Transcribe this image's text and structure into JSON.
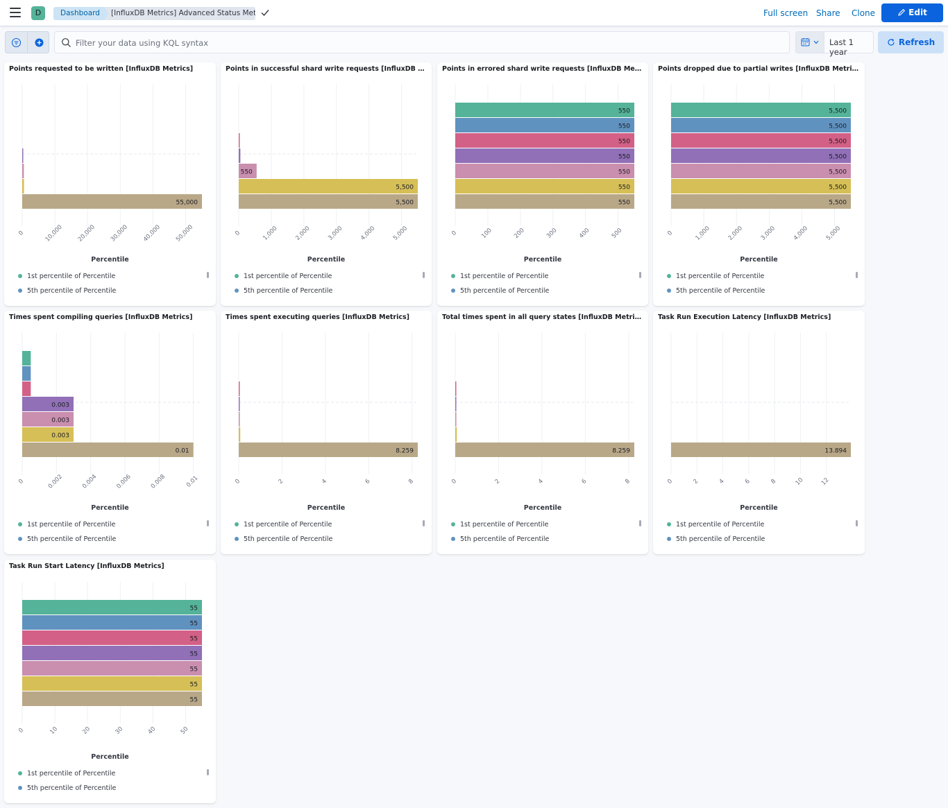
{
  "header": {
    "avatar_letter": "D",
    "breadcrumb_root": "Dashboard",
    "breadcrumb_current": "[InfluxDB Metrics] Advanced Status Metrics",
    "links": [
      "Full screen",
      "Share",
      "Clone"
    ],
    "edit_label": "Edit"
  },
  "query_bar": {
    "placeholder": "Filter your data using KQL syntax",
    "date_range": "Last 1 year",
    "refresh_label": "Refresh"
  },
  "colors": [
    "#54b399",
    "#6092c0",
    "#d36086",
    "#9170b8",
    "#ca8eae",
    "#d6bf57",
    "#b9a888"
  ],
  "axis_title": "Percentile",
  "legend": [
    "1st percentile of Percentile",
    "5th percentile of Percentile"
  ],
  "chart_data": [
    {
      "type": "bar",
      "title": "Points requested to be written [InfluxDB Metrics]",
      "orientation": "horizontal",
      "xlabel": "Percentile",
      "ticks": [
        "0",
        "10,000",
        "20,000",
        "30,000",
        "40,000",
        "50,000"
      ],
      "xlim": [
        0,
        55000
      ],
      "values": [
        0,
        0,
        0,
        50,
        500,
        550,
        55000
      ],
      "labels": [
        "",
        "",
        "",
        "",
        "",
        "",
        "55,000"
      ]
    },
    {
      "type": "bar",
      "title": "Points in successful shard write requests [InfluxDB Metr...",
      "orientation": "horizontal",
      "xlabel": "Percentile",
      "ticks": [
        "0",
        "1,000",
        "2,000",
        "3,000",
        "4,000",
        "5,000"
      ],
      "xlim": [
        0,
        5500
      ],
      "values": [
        0,
        0,
        5,
        50,
        550,
        5500,
        5500
      ],
      "labels": [
        "",
        "",
        "",
        "",
        "550",
        "5,500",
        "5,500"
      ]
    },
    {
      "type": "bar",
      "title": "Points in errored shard write requests [InfluxDB Metrics]",
      "orientation": "horizontal",
      "xlabel": "Percentile",
      "ticks": [
        "0",
        "100",
        "200",
        "300",
        "400",
        "500"
      ],
      "xlim": [
        0,
        550
      ],
      "values": [
        550,
        550,
        550,
        550,
        550,
        550,
        550
      ],
      "labels": [
        "550",
        "550",
        "550",
        "550",
        "550",
        "550",
        "550"
      ]
    },
    {
      "type": "bar",
      "title": "Points dropped due to partial writes [InfluxDB Metrics]",
      "orientation": "horizontal",
      "xlabel": "Percentile",
      "ticks": [
        "0",
        "1,000",
        "2,000",
        "3,000",
        "4,000",
        "5,000"
      ],
      "xlim": [
        0,
        5500
      ],
      "values": [
        5500,
        5500,
        5500,
        5500,
        5500,
        5500,
        5500
      ],
      "labels": [
        "5,500",
        "5,500",
        "5,500",
        "5,500",
        "5,500",
        "5,500",
        "5,500"
      ]
    },
    {
      "type": "bar",
      "title": "Times spent compiling queries [InfluxDB Metrics]",
      "orientation": "horizontal",
      "xlabel": "Percentile",
      "ticks": [
        "0",
        "0.002",
        "0.004",
        "0.006",
        "0.008",
        "0.01"
      ],
      "xlim": [
        0,
        0.0105
      ],
      "values": [
        0.0005,
        0.0005,
        0.0005,
        0.003,
        0.003,
        0.003,
        0.01
      ],
      "labels": [
        "",
        "",
        "",
        "0.003",
        "0.003",
        "0.003",
        "0.01"
      ]
    },
    {
      "type": "bar",
      "title": "Times spent executing queries [InfluxDB Metrics]",
      "orientation": "horizontal",
      "xlabel": "Percentile",
      "ticks": [
        "0",
        "2",
        "4",
        "6",
        "8"
      ],
      "xlim": [
        0,
        8.26
      ],
      "values": [
        0,
        0,
        0.02,
        0.03,
        0.05,
        0.07,
        8.259
      ],
      "labels": [
        "",
        "",
        "",
        "",
        "",
        "",
        "8.259"
      ]
    },
    {
      "type": "bar",
      "title": "Total times spent in all query states [InfluxDB Metrics]",
      "orientation": "horizontal",
      "xlabel": "Percentile",
      "ticks": [
        "0",
        "2",
        "4",
        "6",
        "8"
      ],
      "xlim": [
        0,
        8.26
      ],
      "values": [
        0,
        0,
        0.02,
        0.03,
        0.05,
        0.07,
        8.259
      ],
      "labels": [
        "",
        "",
        "",
        "",
        "",
        "",
        "8.259"
      ]
    },
    {
      "type": "bar",
      "title": "Task Run Execution Latency [InfluxDB Metrics]",
      "orientation": "horizontal",
      "xlabel": "Percentile",
      "ticks": [
        "0",
        "2",
        "4",
        "6",
        "8",
        "10",
        "12"
      ],
      "xlim": [
        0,
        13.894
      ],
      "values": [
        0,
        0,
        0,
        0,
        0,
        0,
        13.894
      ],
      "labels": [
        "",
        "",
        "",
        "",
        "",
        "",
        "13.894"
      ]
    },
    {
      "type": "bar",
      "title": "Task Run Start Latency [InfluxDB Metrics]",
      "orientation": "horizontal",
      "xlabel": "Percentile",
      "ticks": [
        "0",
        "10",
        "20",
        "30",
        "40",
        "50"
      ],
      "xlim": [
        0,
        55
      ],
      "values": [
        55,
        55,
        55,
        55,
        55,
        55,
        55
      ],
      "labels": [
        "55",
        "55",
        "55",
        "55",
        "55",
        "55",
        "55"
      ]
    }
  ]
}
